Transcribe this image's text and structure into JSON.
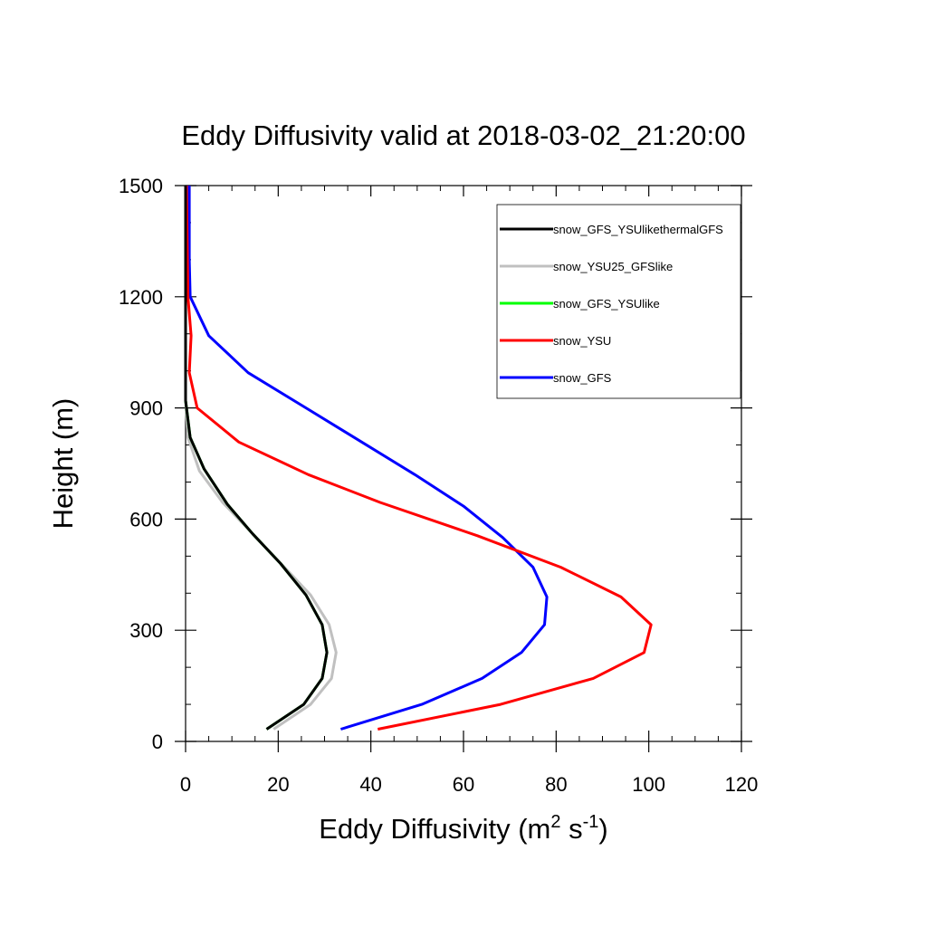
{
  "chart_data": {
    "type": "line",
    "title": "Eddy Diffusivity valid at 2018-03-02_21:20:00",
    "xlabel": {
      "main": "Eddy Diffusivity (m",
      "sup1": "2",
      "mid": " s",
      "sup2": "-1",
      "end": ")"
    },
    "ylabel": "Height (m)",
    "xlim": [
      0,
      120
    ],
    "ylim": [
      0,
      1500
    ],
    "xticks": [
      "0",
      "20",
      "40",
      "60",
      "80",
      "100",
      "120"
    ],
    "yticks": [
      "0",
      "300",
      "600",
      "900",
      "1200",
      "1500"
    ],
    "grid": false,
    "legend_position": "top-right",
    "series": [
      {
        "name": "snow_GFS",
        "color": "#0000ff",
        "points": [
          [
            33.5,
            33
          ],
          [
            51,
            100
          ],
          [
            64,
            170
          ],
          [
            72.5,
            240
          ],
          [
            77.5,
            315
          ],
          [
            78,
            390
          ],
          [
            75,
            470
          ],
          [
            68.5,
            550
          ],
          [
            60,
            635
          ],
          [
            49.5,
            720
          ],
          [
            26,
            900
          ],
          [
            13.5,
            995
          ],
          [
            5,
            1095
          ],
          [
            1,
            1200
          ],
          [
            0.8,
            1300
          ],
          [
            0.8,
            1500
          ]
        ]
      },
      {
        "name": "snow_YSU",
        "color": "#ff0000",
        "points": [
          [
            41.5,
            33
          ],
          [
            68,
            100
          ],
          [
            88,
            170
          ],
          [
            99,
            240
          ],
          [
            100.5,
            315
          ],
          [
            94,
            390
          ],
          [
            81,
            470
          ],
          [
            63,
            555
          ],
          [
            42,
            645
          ],
          [
            26.5,
            720
          ],
          [
            11.5,
            808
          ],
          [
            2.5,
            900
          ],
          [
            0.8,
            995
          ],
          [
            1.2,
            1095
          ],
          [
            0.5,
            1200
          ],
          [
            0.2,
            1500
          ]
        ]
      },
      {
        "name": "snow_YSU25_GFSlike",
        "color": "#c0c0c0",
        "points": [
          [
            19,
            33
          ],
          [
            27,
            100
          ],
          [
            31.5,
            170
          ],
          [
            32.5,
            240
          ],
          [
            31,
            315
          ],
          [
            27,
            395
          ],
          [
            21,
            475
          ],
          [
            14.5,
            560
          ],
          [
            8,
            645
          ],
          [
            3,
            730
          ],
          [
            0.5,
            820
          ],
          [
            0,
            920
          ],
          [
            0,
            1500
          ]
        ]
      },
      {
        "name": "snow_GFS_YSUlike",
        "color": "#00ff00",
        "points": [
          [
            17.5,
            33
          ],
          [
            25.5,
            100
          ],
          [
            29.5,
            170
          ],
          [
            30.5,
            240
          ],
          [
            29.5,
            315
          ],
          [
            26,
            395
          ],
          [
            20.5,
            480
          ],
          [
            14.5,
            560
          ],
          [
            9,
            640
          ],
          [
            4,
            735
          ],
          [
            1,
            820
          ],
          [
            0,
            920
          ],
          [
            0,
            1500
          ]
        ]
      },
      {
        "name": "snow_GFS_YSUlikethermalGFS",
        "color": "#000000",
        "points": [
          [
            17.5,
            33
          ],
          [
            25.5,
            100
          ],
          [
            29.5,
            170
          ],
          [
            30.5,
            240
          ],
          [
            29.5,
            315
          ],
          [
            26,
            395
          ],
          [
            20.5,
            480
          ],
          [
            14.5,
            560
          ],
          [
            9,
            640
          ],
          [
            4,
            735
          ],
          [
            1,
            820
          ],
          [
            0,
            920
          ],
          [
            0,
            1500
          ]
        ]
      }
    ],
    "legend_order": [
      "snow_GFS_YSUlikethermalGFS",
      "snow_YSU25_GFSlike",
      "snow_GFS_YSUlike",
      "snow_YSU",
      "snow_GFS"
    ]
  }
}
